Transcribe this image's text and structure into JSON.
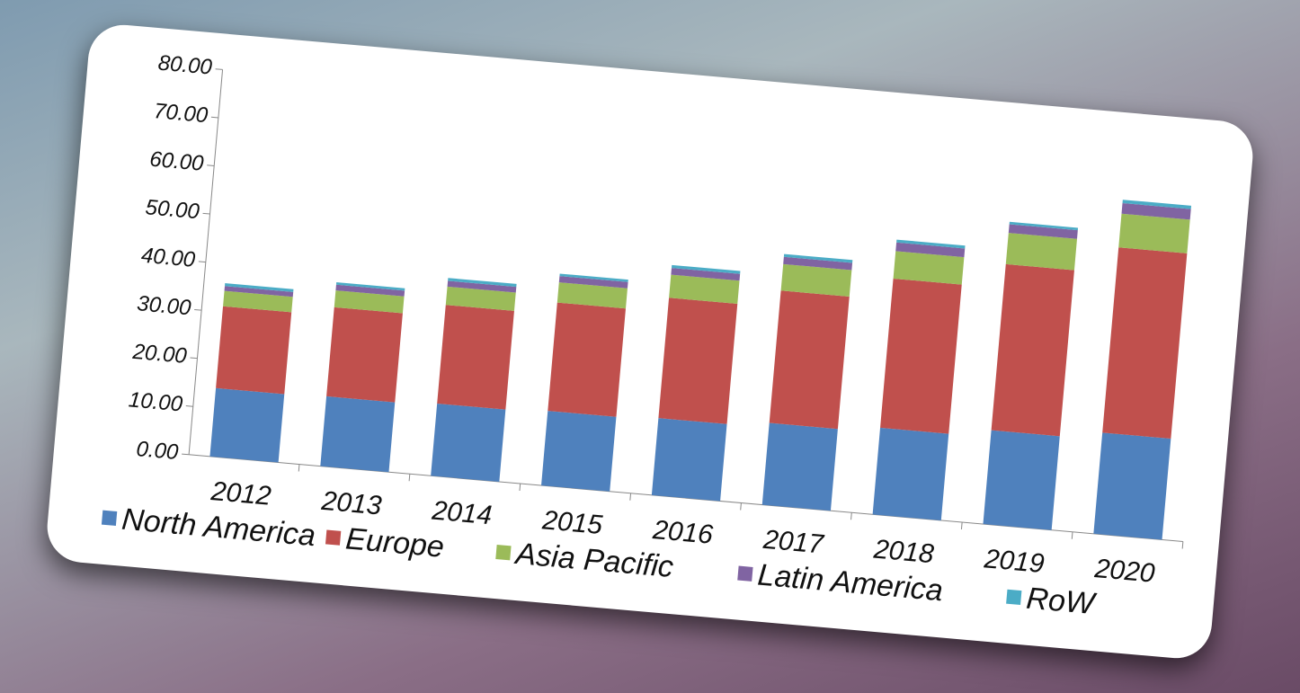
{
  "chart_data": {
    "type": "stacked_bar",
    "categories": [
      "2012",
      "2013",
      "2014",
      "2015",
      "2016",
      "2017",
      "2018",
      "2019",
      "2020"
    ],
    "series": [
      {
        "name": "North America",
        "color": "#4f81bd",
        "values": [
          14.2,
          14.5,
          15.0,
          15.5,
          16.0,
          17.0,
          18.0,
          19.5,
          21.0
        ]
      },
      {
        "name": "Europe",
        "color": "#c0504d",
        "values": [
          17.0,
          18.5,
          20.5,
          22.5,
          25.0,
          27.5,
          31.0,
          34.5,
          38.5
        ]
      },
      {
        "name": "Asia Pacific",
        "color": "#9bbb59",
        "values": [
          3.2,
          3.5,
          3.8,
          4.2,
          4.8,
          5.5,
          5.7,
          6.5,
          7.0
        ]
      },
      {
        "name": "Latin America",
        "color": "#8064a2",
        "values": [
          1.0,
          1.2,
          1.2,
          1.3,
          1.4,
          1.5,
          1.8,
          1.8,
          2.2
        ]
      },
      {
        "name": "RoW",
        "color": "#4bacc6",
        "values": [
          0.6,
          0.5,
          0.6,
          0.5,
          0.6,
          0.6,
          0.6,
          0.5,
          0.7
        ]
      }
    ],
    "ylim": [
      0,
      80
    ],
    "yticks": [
      {
        "value": 0,
        "label": "0.00"
      },
      {
        "value": 10,
        "label": "10.00"
      },
      {
        "value": 20,
        "label": "20.00"
      },
      {
        "value": 30,
        "label": "30.00"
      },
      {
        "value": 40,
        "label": "40.00"
      },
      {
        "value": 50,
        "label": "50.00"
      },
      {
        "value": 60,
        "label": "60.00"
      },
      {
        "value": 70,
        "label": "70.00"
      },
      {
        "value": 80,
        "label": "80.00"
      }
    ],
    "legend": "bottom"
  }
}
